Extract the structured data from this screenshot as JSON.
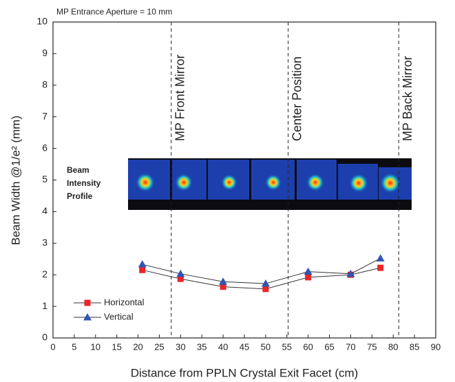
{
  "chart_data": {
    "type": "line",
    "annotation_top": "MP Entrance Aperture = 10 mm",
    "x_label": "Distance from PPLN Crystal Exit Facet (cm)",
    "y_label": "Beam Width @1/e² (mm)",
    "xlim": [
      0,
      90
    ],
    "xticks": [
      0,
      5,
      10,
      15,
      20,
      25,
      30,
      35,
      40,
      45,
      50,
      55,
      60,
      65,
      70,
      75,
      80,
      85,
      90
    ],
    "ylim": [
      0,
      10
    ],
    "yticks": [
      0,
      1,
      2,
      3,
      4,
      5,
      6,
      7,
      8,
      9,
      10
    ],
    "markers": [
      {
        "text": "MP Front Mirror",
        "x": 27.8
      },
      {
        "text": "Center Position",
        "x": 55.3
      },
      {
        "text": "MP Back Mirror",
        "x": 81.3
      }
    ],
    "image_label_lines": [
      "Beam",
      "Intensity",
      "Profile"
    ],
    "series": [
      {
        "name": "Horizontal",
        "color": "#e8262b",
        "marker": "square",
        "x": [
          21,
          30,
          40,
          50,
          60,
          70,
          77
        ],
        "values": [
          2.15,
          1.87,
          1.62,
          1.55,
          1.92,
          2.0,
          2.22
        ]
      },
      {
        "name": "Vertical",
        "color": "#2f55b5",
        "marker": "triangle",
        "x": [
          21,
          30,
          40,
          50,
          60,
          70,
          77
        ],
        "values": [
          2.33,
          2.03,
          1.78,
          1.72,
          2.1,
          2.03,
          2.52
        ]
      }
    ]
  }
}
